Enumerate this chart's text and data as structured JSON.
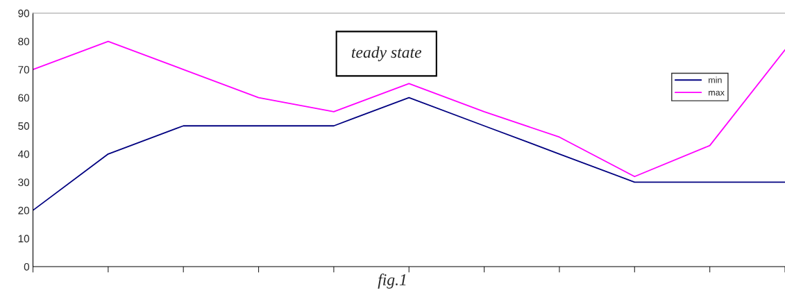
{
  "chart_data": {
    "type": "line",
    "categories": [
      null,
      null,
      null,
      null,
      null,
      null,
      null,
      null,
      null,
      null,
      null
    ],
    "series": [
      {
        "name": "min",
        "color": "#000080",
        "values": [
          20,
          40,
          50,
          50,
          50,
          60,
          50,
          40,
          30,
          30,
          30
        ]
      },
      {
        "name": "max",
        "color": "#ff00ff",
        "values": [
          70,
          80,
          70,
          60,
          55,
          65,
          55,
          46,
          32,
          43,
          77
        ]
      }
    ],
    "ylim": [
      0,
      90
    ],
    "yticks": [
      0,
      10,
      20,
      30,
      40,
      50,
      60,
      70,
      80,
      90
    ],
    "tick_labels": "y",
    "grid": false,
    "legend": "top right",
    "annotations": [
      "teady state",
      "fig.1"
    ]
  }
}
